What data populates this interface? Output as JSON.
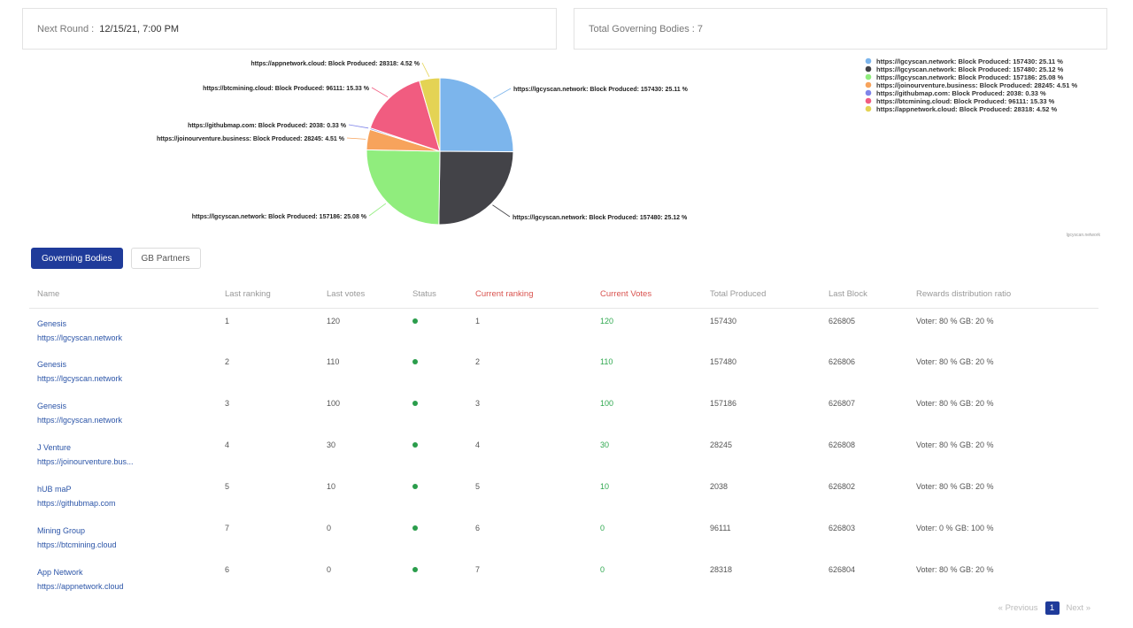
{
  "header": {
    "next_round_label": "Next Round :",
    "next_round_value": "12/15/21, 7:00 PM",
    "total_bodies_label": "Total Governing Bodies : 7"
  },
  "chart_data": {
    "type": "pie",
    "values": [
      25.11,
      25.12,
      25.08,
      4.51,
      0.33,
      15.33,
      4.52
    ],
    "colors": [
      "#7cb5ec",
      "#434348",
      "#90ed7d",
      "#f7a35c",
      "#8085e9",
      "#f15c80",
      "#e4d354"
    ],
    "labels": [
      "https://lgcyscan.network: Block Produced: 157430: 25.11 %",
      "https://lgcyscan.network: Block Produced: 157480: 25.12 %",
      "https://lgcyscan.network: Block Produced: 157186: 25.08 %",
      "https://joinourventure.business: Block Produced: 28245: 4.51 %",
      "https://githubmap.com: Block Produced: 2038: 0.33 %",
      "https://btcmining.cloud: Block Produced: 96111: 15.33 %",
      "https://appnetwork.cloud: Block Produced: 28318: 4.52 %"
    ],
    "credit": "lgcyscan.network"
  },
  "tabs": [
    "Governing Bodies",
    "GB Partners"
  ],
  "table": {
    "headers": [
      "Name",
      "Last ranking",
      "Last votes",
      "Status",
      "Current ranking",
      "Current Votes",
      "Total Produced",
      "Last Block",
      "Rewards distribution ratio"
    ],
    "rows": [
      {
        "name": "Genesis",
        "url": "https://lgcyscan.network",
        "last_ranking": "1",
        "last_votes": "120",
        "current_ranking": "1",
        "current_votes": "120",
        "total_produced": "157430",
        "last_block": "626805",
        "ratio": "Voter: 80 % GB: 20 %"
      },
      {
        "name": "Genesis",
        "url": "https://lgcyscan.network",
        "last_ranking": "2",
        "last_votes": "110",
        "current_ranking": "2",
        "current_votes": "110",
        "total_produced": "157480",
        "last_block": "626806",
        "ratio": "Voter: 80 % GB: 20 %"
      },
      {
        "name": "Genesis",
        "url": "https://lgcyscan.network",
        "last_ranking": "3",
        "last_votes": "100",
        "current_ranking": "3",
        "current_votes": "100",
        "total_produced": "157186",
        "last_block": "626807",
        "ratio": "Voter: 80 % GB: 20 %"
      },
      {
        "name": "J Venture",
        "url": "https://joinourventure.bus...",
        "last_ranking": "4",
        "last_votes": "30",
        "current_ranking": "4",
        "current_votes": "30",
        "total_produced": "28245",
        "last_block": "626808",
        "ratio": "Voter: 80 % GB: 20 %"
      },
      {
        "name": "hUB maP",
        "url": "https://githubmap.com",
        "last_ranking": "5",
        "last_votes": "10",
        "current_ranking": "5",
        "current_votes": "10",
        "total_produced": "2038",
        "last_block": "626802",
        "ratio": "Voter: 80 % GB: 20 %"
      },
      {
        "name": "Mining Group",
        "url": "https://btcmining.cloud",
        "last_ranking": "7",
        "last_votes": "0",
        "current_ranking": "6",
        "current_votes": "0",
        "total_produced": "96111",
        "last_block": "626803",
        "ratio": "Voter: 0 % GB: 100 %"
      },
      {
        "name": "App Network",
        "url": "https://appnetwork.cloud",
        "last_ranking": "6",
        "last_votes": "0",
        "current_ranking": "7",
        "current_votes": "0",
        "total_produced": "28318",
        "last_block": "626804",
        "ratio": "Voter: 80 % GB: 20 %"
      }
    ]
  },
  "pagination": {
    "previous": "« Previous",
    "current": "1",
    "next": "Next »"
  }
}
